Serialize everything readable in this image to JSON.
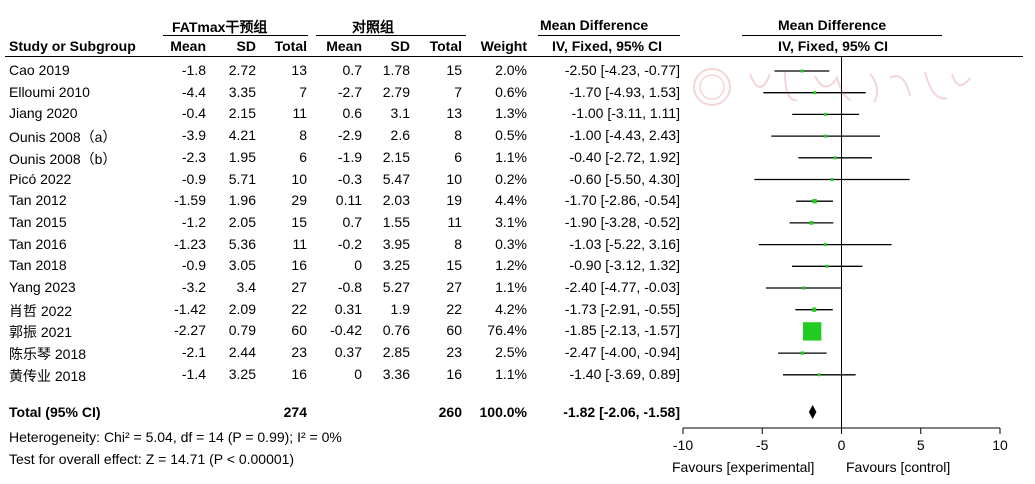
{
  "headers": {
    "group1": "FATmax干预组",
    "group2": "对照组",
    "mean_diff_text": "Mean Difference",
    "mean_diff_plot": "Mean Difference",
    "study": "Study or Subgroup",
    "mean1": "Mean",
    "sd1": "SD",
    "total1": "Total",
    "mean2": "Mean",
    "sd2": "SD",
    "total2": "Total",
    "weight": "Weight",
    "ivfixed_text": "IV, Fixed, 95% CI",
    "ivfixed_plot": "IV, Fixed, 95% CI"
  },
  "studies": [
    {
      "name": "Cao 2019",
      "mean1": "-1.8",
      "sd1": "2.72",
      "total1": "13",
      "mean2": "0.7",
      "sd2": "1.78",
      "total2": "15",
      "weight": "2.0%",
      "ci": "-2.50 [-4.23, -0.77]"
    },
    {
      "name": "Elloumi 2010",
      "mean1": "-4.4",
      "sd1": "3.35",
      "total1": "7",
      "mean2": "-2.7",
      "sd2": "2.79",
      "total2": "7",
      "weight": "0.6%",
      "ci": "-1.70 [-4.93, 1.53]"
    },
    {
      "name": "Jiang 2020",
      "mean1": "-0.4",
      "sd1": "2.15",
      "total1": "11",
      "mean2": "0.6",
      "sd2": "3.1",
      "total2": "13",
      "weight": "1.3%",
      "ci": "-1.00 [-3.11, 1.11]"
    },
    {
      "name": "Ounis 2008（a）",
      "mean1": "-3.9",
      "sd1": "4.21",
      "total1": "8",
      "mean2": "-2.9",
      "sd2": "2.6",
      "total2": "8",
      "weight": "0.5%",
      "ci": "-1.00 [-4.43, 2.43]"
    },
    {
      "name": "Ounis 2008（b）",
      "mean1": "-2.3",
      "sd1": "1.95",
      "total1": "6",
      "mean2": "-1.9",
      "sd2": "2.15",
      "total2": "6",
      "weight": "1.1%",
      "ci": "-0.40 [-2.72, 1.92]"
    },
    {
      "name": "Picó 2022",
      "mean1": "-0.9",
      "sd1": "5.71",
      "total1": "10",
      "mean2": "-0.3",
      "sd2": "5.47",
      "total2": "10",
      "weight": "0.2%",
      "ci": "-0.60 [-5.50, 4.30]"
    },
    {
      "name": "Tan 2012",
      "mean1": "-1.59",
      "sd1": "1.96",
      "total1": "29",
      "mean2": "0.11",
      "sd2": "2.03",
      "total2": "19",
      "weight": "4.4%",
      "ci": "-1.70 [-2.86, -0.54]"
    },
    {
      "name": "Tan 2015",
      "mean1": "-1.2",
      "sd1": "2.05",
      "total1": "15",
      "mean2": "0.7",
      "sd2": "1.55",
      "total2": "11",
      "weight": "3.1%",
      "ci": "-1.90 [-3.28, -0.52]"
    },
    {
      "name": "Tan 2016",
      "mean1": "-1.23",
      "sd1": "5.36",
      "total1": "11",
      "mean2": "-0.2",
      "sd2": "3.95",
      "total2": "8",
      "weight": "0.3%",
      "ci": "-1.03 [-5.22, 3.16]"
    },
    {
      "name": "Tan 2018",
      "mean1": "-0.9",
      "sd1": "3.05",
      "total1": "16",
      "mean2": "0",
      "sd2": "3.25",
      "total2": "15",
      "weight": "1.2%",
      "ci": "-0.90 [-3.12, 1.32]"
    },
    {
      "name": "Yang 2023",
      "mean1": "-3.2",
      "sd1": "3.4",
      "total1": "27",
      "mean2": "-0.8",
      "sd2": "5.27",
      "total2": "27",
      "weight": "1.1%",
      "ci": "-2.40 [-4.77, -0.03]"
    },
    {
      "name": "肖哲 2022",
      "mean1": "-1.42",
      "sd1": "2.09",
      "total1": "22",
      "mean2": "0.31",
      "sd2": "1.9",
      "total2": "22",
      "weight": "4.2%",
      "ci": "-1.73 [-2.91, -0.55]"
    },
    {
      "name": "郭振 2021",
      "mean1": "-2.27",
      "sd1": "0.79",
      "total1": "60",
      "mean2": "-0.42",
      "sd2": "0.76",
      "total2": "60",
      "weight": "76.4%",
      "ci": "-1.85 [-2.13, -1.57]"
    },
    {
      "name": "陈乐琴 2018",
      "mean1": "-2.1",
      "sd1": "2.44",
      "total1": "23",
      "mean2": "0.37",
      "sd2": "2.85",
      "total2": "23",
      "weight": "2.5%",
      "ci": "-2.47 [-4.00, -0.94]"
    },
    {
      "name": "黄传业 2018",
      "mean1": "-1.4",
      "sd1": "3.25",
      "total1": "16",
      "mean2": "0",
      "sd2": "3.36",
      "total2": "16",
      "weight": "1.1%",
      "ci": "-1.40 [-3.69, 0.89]"
    }
  ],
  "total": {
    "label": "Total (95% CI)",
    "total1": "274",
    "total2": "260",
    "weight": "100.0%",
    "ci": "-1.82 [-2.06, -1.58]"
  },
  "footer": {
    "heterogeneity": "Heterogeneity: Chi² = 5.04, df = 14 (P = 0.99); I² = 0%",
    "overall": "Test for overall effect: Z = 14.71 (P < 0.00001)",
    "favours_left": "Favours [experimental]",
    "favours_right": "Favours [control]"
  },
  "colors": {
    "square": "#22cc22",
    "diamond": "#000000"
  },
  "chart_data": {
    "type": "forest",
    "xlim": [
      -10,
      10
    ],
    "xticks": [
      -10,
      -5,
      0,
      5,
      10
    ],
    "xtick_labels": [
      "-10",
      "-5",
      "0",
      "5",
      "10"
    ],
    "points": [
      {
        "md": -2.5,
        "lo": -4.23,
        "hi": -0.77,
        "weight": 2.0
      },
      {
        "md": -1.7,
        "lo": -4.93,
        "hi": 1.53,
        "weight": 0.6
      },
      {
        "md": -1.0,
        "lo": -3.11,
        "hi": 1.11,
        "weight": 1.3
      },
      {
        "md": -1.0,
        "lo": -4.43,
        "hi": 2.43,
        "weight": 0.5
      },
      {
        "md": -0.4,
        "lo": -2.72,
        "hi": 1.92,
        "weight": 1.1
      },
      {
        "md": -0.6,
        "lo": -5.5,
        "hi": 4.3,
        "weight": 0.2
      },
      {
        "md": -1.7,
        "lo": -2.86,
        "hi": -0.54,
        "weight": 4.4
      },
      {
        "md": -1.9,
        "lo": -3.28,
        "hi": -0.52,
        "weight": 3.1
      },
      {
        "md": -1.03,
        "lo": -5.22,
        "hi": 3.16,
        "weight": 0.3
      },
      {
        "md": -0.9,
        "lo": -3.12,
        "hi": 1.32,
        "weight": 1.2
      },
      {
        "md": -2.4,
        "lo": -4.77,
        "hi": -0.03,
        "weight": 1.1
      },
      {
        "md": -1.73,
        "lo": -2.91,
        "hi": -0.55,
        "weight": 4.2
      },
      {
        "md": -1.85,
        "lo": -2.13,
        "hi": -1.57,
        "weight": 76.4
      },
      {
        "md": -2.47,
        "lo": -4.0,
        "hi": -0.94,
        "weight": 2.5
      },
      {
        "md": -1.4,
        "lo": -3.69,
        "hi": 0.89,
        "weight": 1.1
      }
    ],
    "overall": {
      "md": -1.82,
      "lo": -2.06,
      "hi": -1.58
    }
  }
}
